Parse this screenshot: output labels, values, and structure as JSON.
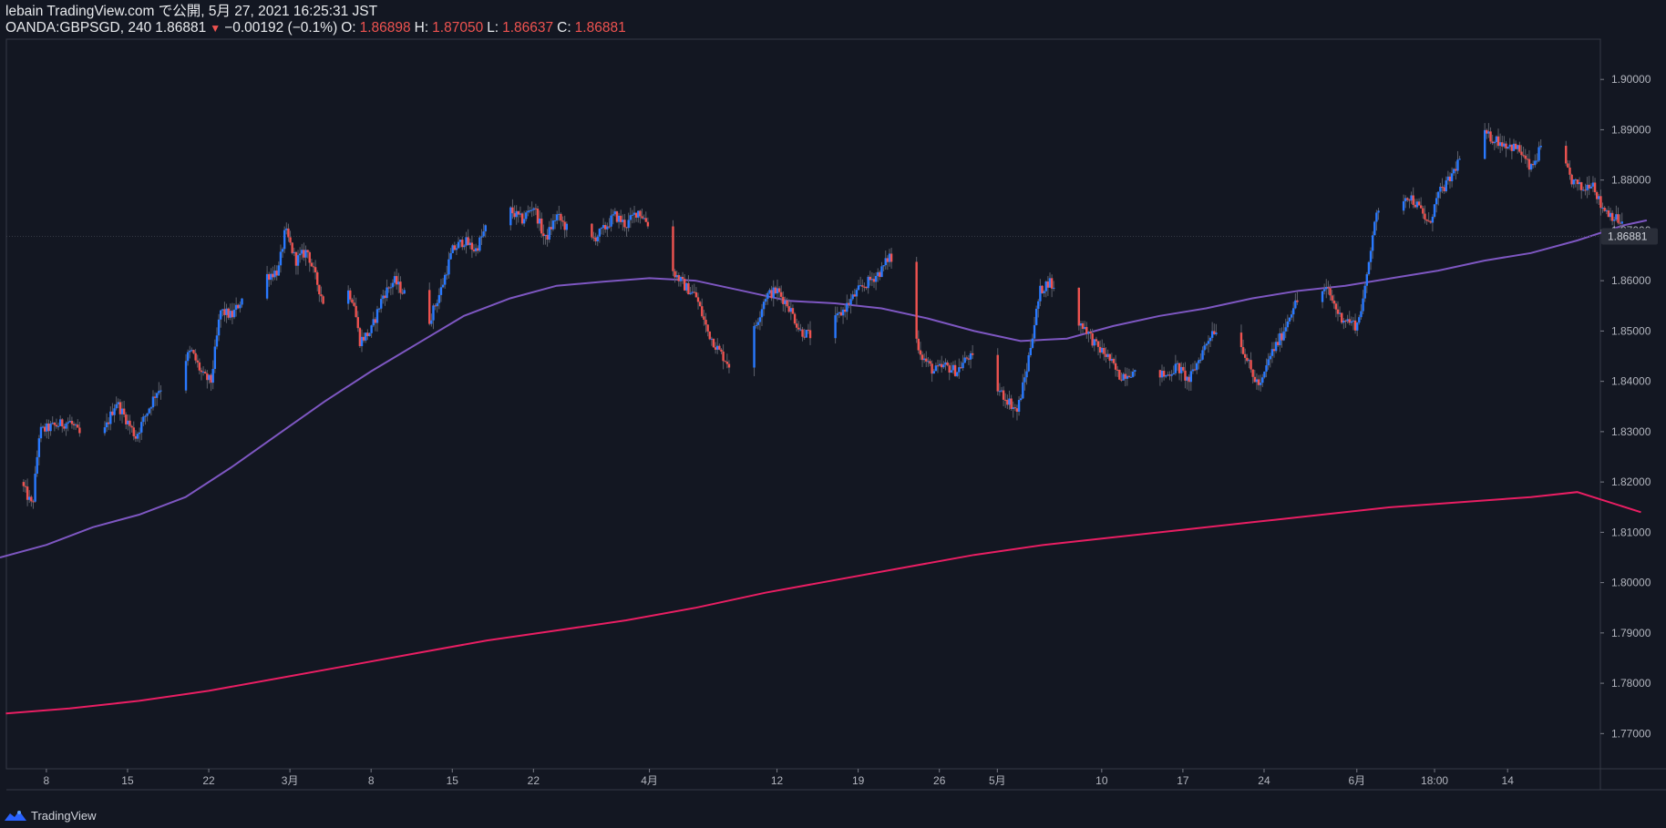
{
  "header": {
    "published": "lebain TradingView.com で公開, 5月 27, 2021 16:25:31 JST",
    "symbol": "OANDA:GBPSGD, 240",
    "last": "1.86881",
    "change": "−0.00192 (−0.1%)",
    "o_label": "O:",
    "o_value": "1.86898",
    "h_label": "H:",
    "h_value": "1.87050",
    "l_label": "L:",
    "l_value": "1.86637",
    "c_label": "C:",
    "c_value": "1.86881"
  },
  "footer": {
    "brand": "TradingView"
  },
  "colors": {
    "background": "#131722",
    "up": "#2979ff",
    "down": "#ef5350",
    "ma_fast": "#7e57c2",
    "ma_slow": "#e91e63",
    "price_tag_bg": "#2a2e39"
  },
  "chart_data": {
    "type": "candlestick",
    "symbol": "OANDA:GBPSGD",
    "timeframe": "240",
    "ylim": [
      1.763,
      1.908
    ],
    "y_ticks": [
      "1.90000",
      "1.89000",
      "1.88000",
      "1.87000",
      "1.86000",
      "1.85000",
      "1.84000",
      "1.83000",
      "1.82000",
      "1.81000",
      "1.80000",
      "1.79000",
      "1.78000",
      "1.77000"
    ],
    "x_ticks": [
      {
        "label": "8",
        "day": 8
      },
      {
        "label": "15",
        "day": 15
      },
      {
        "label": "22",
        "day": 22
      },
      {
        "label": "3月",
        "day": 29
      },
      {
        "label": "8",
        "day": 36
      },
      {
        "label": "15",
        "day": 43
      },
      {
        "label": "22",
        "day": 50
      },
      {
        "label": "4月",
        "day": 60
      },
      {
        "label": "12",
        "day": 71
      },
      {
        "label": "19",
        "day": 78
      },
      {
        "label": "26",
        "day": 85
      },
      {
        "label": "5月",
        "day": 90
      },
      {
        "label": "10",
        "day": 99
      },
      {
        "label": "17",
        "day": 106
      },
      {
        "label": "24",
        "day": 113
      },
      {
        "label": "6月",
        "day": 121
      },
      {
        "label": "18:00",
        "day": 127.7
      },
      {
        "label": "14",
        "day": 134
      }
    ],
    "x_day_range": [
      4,
      142
    ],
    "last_price": 1.86881,
    "last_price_label": "1.86881",
    "price_path": [
      [
        4.2,
        1.82
      ],
      [
        6,
        1.819
      ],
      [
        6.8,
        1.815
      ],
      [
        7.4,
        1.83
      ],
      [
        8.5,
        1.831
      ],
      [
        10,
        1.832
      ],
      [
        11,
        1.829
      ],
      [
        12,
        1.832
      ],
      [
        13,
        1.83
      ],
      [
        14,
        1.836
      ],
      [
        15,
        1.832
      ],
      [
        15.7,
        1.829
      ],
      [
        16.5,
        1.833
      ],
      [
        17.5,
        1.838
      ],
      [
        18.5,
        1.84
      ],
      [
        19.5,
        1.843
      ],
      [
        20.5,
        1.846
      ],
      [
        21.5,
        1.841
      ],
      [
        22.2,
        1.84
      ],
      [
        23,
        1.854
      ],
      [
        24,
        1.853
      ],
      [
        25,
        1.857
      ],
      [
        26,
        1.856
      ],
      [
        27,
        1.861
      ],
      [
        28,
        1.862
      ],
      [
        28.6,
        1.87
      ],
      [
        29.5,
        1.864
      ],
      [
        30.5,
        1.866
      ],
      [
        31,
        1.862
      ],
      [
        32,
        1.855
      ],
      [
        32.7,
        1.849
      ],
      [
        33.5,
        1.86
      ],
      [
        34.5,
        1.856
      ],
      [
        35,
        1.848
      ],
      [
        36,
        1.85
      ],
      [
        37,
        1.857
      ],
      [
        38,
        1.86
      ],
      [
        39,
        1.857
      ],
      [
        40,
        1.858
      ],
      [
        41,
        1.852
      ],
      [
        42,
        1.858
      ],
      [
        43,
        1.866
      ],
      [
        44,
        1.868
      ],
      [
        45,
        1.866
      ],
      [
        46,
        1.871
      ],
      [
        47,
        1.87
      ],
      [
        48,
        1.874
      ],
      [
        49,
        1.872
      ],
      [
        50,
        1.875
      ],
      [
        51,
        1.868
      ],
      [
        52,
        1.873
      ],
      [
        53,
        1.87
      ],
      [
        54,
        1.861
      ],
      [
        55,
        1.868
      ],
      [
        56,
        1.87
      ],
      [
        57,
        1.873
      ],
      [
        58,
        1.871
      ],
      [
        59,
        1.874
      ],
      [
        60,
        1.871
      ],
      [
        61,
        1.87
      ],
      [
        62,
        1.862
      ],
      [
        63,
        1.859
      ],
      [
        64,
        1.857
      ],
      [
        65,
        1.85
      ],
      [
        66,
        1.846
      ],
      [
        67,
        1.843
      ],
      [
        68,
        1.846
      ],
      [
        69,
        1.85
      ],
      [
        70,
        1.857
      ],
      [
        71,
        1.858
      ],
      [
        72,
        1.855
      ],
      [
        73,
        1.85
      ],
      [
        74,
        1.849
      ],
      [
        75,
        1.853
      ],
      [
        76,
        1.852
      ],
      [
        77,
        1.855
      ],
      [
        78,
        1.858
      ],
      [
        79,
        1.86
      ],
      [
        80,
        1.862
      ],
      [
        80.7,
        1.865
      ],
      [
        81.5,
        1.86
      ],
      [
        82.5,
        1.852
      ],
      [
        83.5,
        1.845
      ],
      [
        84.5,
        1.842
      ],
      [
        85.5,
        1.843
      ],
      [
        86.5,
        1.842
      ],
      [
        87.5,
        1.845
      ],
      [
        88.5,
        1.843
      ],
      [
        89.5,
        1.84
      ],
      [
        90.2,
        1.838
      ],
      [
        91,
        1.836
      ],
      [
        91.7,
        1.834
      ],
      [
        92.5,
        1.842
      ],
      [
        93,
        1.849
      ],
      [
        93.7,
        1.858
      ],
      [
        94.5,
        1.86
      ],
      [
        95.5,
        1.855
      ],
      [
        96.5,
        1.852
      ],
      [
        97.5,
        1.851
      ],
      [
        98.5,
        1.847
      ],
      [
        99.5,
        1.845
      ],
      [
        100.5,
        1.841
      ],
      [
        101.5,
        1.842
      ],
      [
        102.5,
        1.84
      ],
      [
        103.5,
        1.842
      ],
      [
        104.5,
        1.841
      ],
      [
        105.5,
        1.843
      ],
      [
        106.5,
        1.84
      ],
      [
        107.5,
        1.845
      ],
      [
        108.5,
        1.85
      ],
      [
        109.5,
        1.851
      ],
      [
        110.5,
        1.849
      ],
      [
        111.3,
        1.846
      ],
      [
        112,
        1.841
      ],
      [
        112.7,
        1.839
      ],
      [
        113.5,
        1.845
      ],
      [
        114.5,
        1.849
      ],
      [
        115.5,
        1.855
      ],
      [
        116.5,
        1.857
      ],
      [
        117.5,
        1.858
      ],
      [
        118.5,
        1.858
      ],
      [
        119.5,
        1.853
      ],
      [
        120.3,
        1.852
      ],
      [
        121,
        1.851
      ],
      [
        121.7,
        1.858
      ],
      [
        122.5,
        1.872
      ],
      [
        123.5,
        1.875
      ],
      [
        124.5,
        1.876
      ],
      [
        125.5,
        1.877
      ],
      [
        126.5,
        1.874
      ],
      [
        127.2,
        1.871
      ],
      [
        128,
        1.877
      ],
      [
        129,
        1.88
      ],
      [
        130,
        1.885
      ],
      [
        131,
        1.888
      ],
      [
        132,
        1.889
      ],
      [
        133,
        1.888
      ],
      [
        134,
        1.887
      ],
      [
        135,
        1.886
      ],
      [
        136,
        1.882
      ],
      [
        137,
        1.887
      ],
      [
        137.7,
        1.89
      ],
      [
        138.5,
        1.885
      ],
      [
        139.5,
        1.88
      ],
      [
        140.5,
        1.878
      ],
      [
        141.3,
        1.88
      ],
      [
        142,
        1.875
      ],
      [
        143,
        1.873
      ],
      [
        144,
        1.871
      ],
      [
        145,
        1.8688
      ]
    ],
    "ma_fast_path": [
      [
        4,
        1.805
      ],
      [
        8,
        1.8075
      ],
      [
        12,
        1.811
      ],
      [
        16,
        1.8135
      ],
      [
        20,
        1.817
      ],
      [
        24,
        1.823
      ],
      [
        28,
        1.8295
      ],
      [
        32,
        1.836
      ],
      [
        36,
        1.842
      ],
      [
        40,
        1.8475
      ],
      [
        44,
        1.853
      ],
      [
        48,
        1.8565
      ],
      [
        52,
        1.859
      ],
      [
        56,
        1.8598
      ],
      [
        60,
        1.8605
      ],
      [
        64,
        1.86
      ],
      [
        68,
        1.858
      ],
      [
        72,
        1.856
      ],
      [
        76,
        1.8555
      ],
      [
        80,
        1.8545
      ],
      [
        84,
        1.8525
      ],
      [
        88,
        1.85
      ],
      [
        92,
        1.848
      ],
      [
        96,
        1.8485
      ],
      [
        100,
        1.851
      ],
      [
        104,
        1.853
      ],
      [
        108,
        1.8545
      ],
      [
        112,
        1.8565
      ],
      [
        116,
        1.858
      ],
      [
        120,
        1.859
      ],
      [
        124,
        1.8605
      ],
      [
        128,
        1.862
      ],
      [
        132,
        1.864
      ],
      [
        136,
        1.8655
      ],
      [
        140,
        1.868
      ],
      [
        144,
        1.871
      ],
      [
        146,
        1.872
      ]
    ],
    "ma_slow_path": [
      [
        4.5,
        1.774
      ],
      [
        10,
        1.775
      ],
      [
        16,
        1.7765
      ],
      [
        22,
        1.7785
      ],
      [
        28,
        1.781
      ],
      [
        34,
        1.7835
      ],
      [
        40,
        1.786
      ],
      [
        46,
        1.7885
      ],
      [
        52,
        1.7905
      ],
      [
        58,
        1.7925
      ],
      [
        64,
        1.795
      ],
      [
        70,
        1.798
      ],
      [
        76,
        1.8005
      ],
      [
        82,
        1.803
      ],
      [
        88,
        1.8055
      ],
      [
        94,
        1.8075
      ],
      [
        100,
        1.809
      ],
      [
        106,
        1.8105
      ],
      [
        112,
        1.812
      ],
      [
        118,
        1.8135
      ],
      [
        124,
        1.815
      ],
      [
        130,
        1.816
      ],
      [
        136,
        1.817
      ],
      [
        140,
        1.818
      ],
      [
        145.5,
        1.814
      ]
    ]
  }
}
